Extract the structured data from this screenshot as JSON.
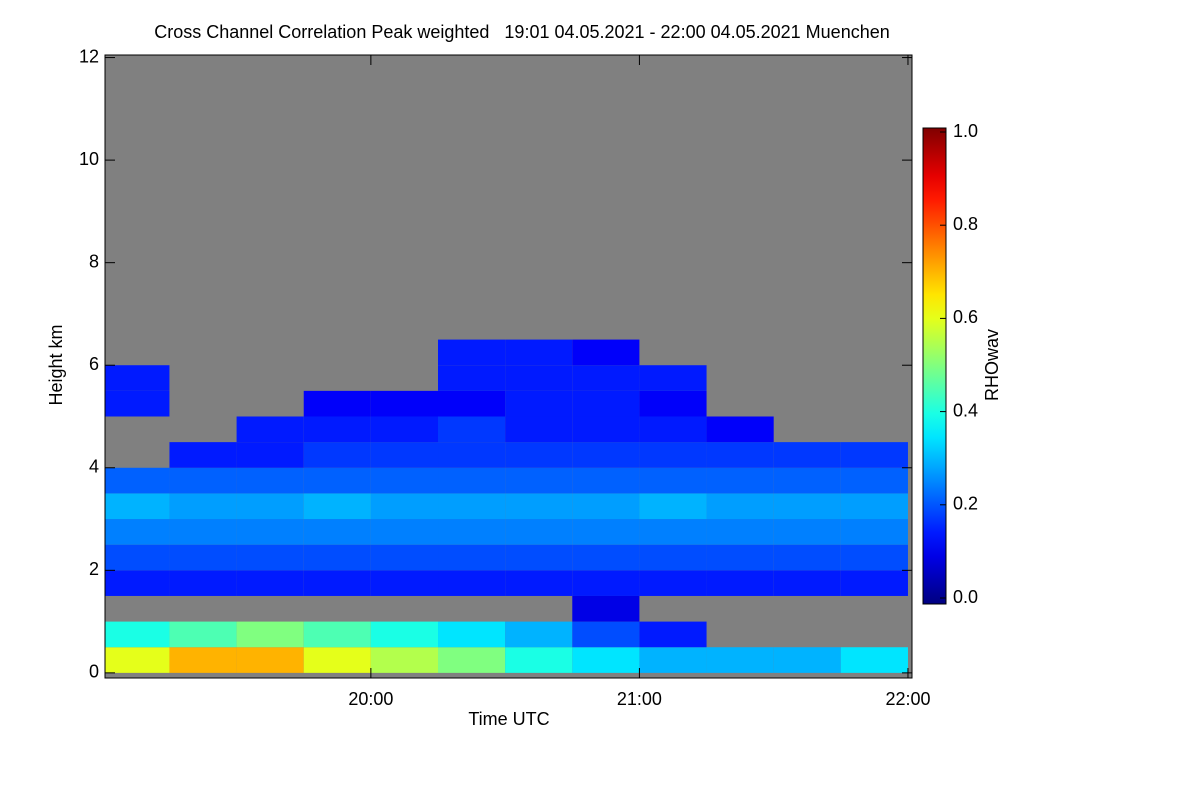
{
  "chart_data": {
    "type": "heatmap",
    "title": "Cross Channel Correlation Peak weighted   19:01 04.05.2021 - 22:00 04.05.2021 Muenchen",
    "xlabel": "Time UTC",
    "ylabel": "Height km",
    "colorbar_label": "RHOwav",
    "x_bins": [
      19.0,
      19.25,
      19.5,
      19.75,
      20.0,
      20.25,
      20.5,
      20.75,
      21.0,
      21.25,
      21.5,
      21.75,
      22.0
    ],
    "y_bins": [
      0,
      0.5,
      1.0,
      1.5,
      2.0,
      2.5,
      3.0,
      3.5,
      4.0,
      4.5,
      5.0,
      5.5,
      6.0,
      6.5,
      7.0
    ],
    "z": [
      [
        0.6,
        0.7,
        0.7,
        0.6,
        0.55,
        0.5,
        0.4,
        0.35,
        0.3,
        0.3,
        0.3,
        0.35
      ],
      [
        0.4,
        0.45,
        0.5,
        0.45,
        0.4,
        0.35,
        0.3,
        0.2,
        0.15,
        null,
        null,
        null
      ],
      [
        null,
        null,
        null,
        null,
        null,
        null,
        null,
        0.1,
        null,
        null,
        null,
        null
      ],
      [
        0.15,
        0.15,
        0.15,
        0.15,
        0.15,
        0.15,
        0.15,
        0.15,
        0.15,
        0.15,
        0.15,
        0.15
      ],
      [
        0.2,
        0.2,
        0.2,
        0.2,
        0.2,
        0.2,
        0.2,
        0.2,
        0.2,
        0.2,
        0.2,
        0.2
      ],
      [
        0.25,
        0.25,
        0.25,
        0.25,
        0.25,
        0.25,
        0.25,
        0.25,
        0.25,
        0.25,
        0.25,
        0.25
      ],
      [
        0.3,
        0.28,
        0.28,
        0.3,
        0.28,
        0.28,
        0.28,
        0.28,
        0.3,
        0.28,
        0.28,
        0.28
      ],
      [
        0.22,
        0.22,
        0.22,
        0.22,
        0.22,
        0.22,
        0.22,
        0.22,
        0.22,
        0.22,
        0.22,
        0.22
      ],
      [
        null,
        0.15,
        0.15,
        0.18,
        0.18,
        0.18,
        0.18,
        0.18,
        0.18,
        0.18,
        0.18,
        0.18
      ],
      [
        null,
        null,
        0.15,
        0.15,
        0.15,
        0.18,
        0.15,
        0.15,
        0.15,
        0.12,
        null,
        null
      ],
      [
        0.15,
        null,
        null,
        0.12,
        0.12,
        0.12,
        0.15,
        0.15,
        0.12,
        null,
        null,
        null
      ],
      [
        0.15,
        null,
        null,
        null,
        null,
        0.15,
        0.15,
        0.15,
        0.15,
        null,
        null,
        null
      ],
      [
        null,
        null,
        null,
        null,
        null,
        0.15,
        0.15,
        0.12,
        null,
        null,
        null,
        null
      ],
      [
        null,
        null,
        null,
        null,
        null,
        null,
        null,
        null,
        null,
        null,
        null,
        null
      ]
    ],
    "xlim": [
      19.01,
      22.015
    ],
    "xticks": [
      {
        "value": 20,
        "label": "20:00"
      },
      {
        "value": 21,
        "label": "21:00"
      },
      {
        "value": 22,
        "label": "22:00"
      }
    ],
    "ylim": [
      -0.1,
      12.05
    ],
    "yticks": [
      0,
      2,
      4,
      6,
      8,
      10,
      12
    ],
    "zlim": [
      0,
      1
    ],
    "zticks": [
      {
        "value": 0,
        "label": "0.0"
      },
      0.2,
      0.4,
      0.6,
      0.8,
      {
        "value": 1,
        "label": "1.0"
      }
    ],
    "colormap": "jet",
    "missing_color": "#808080"
  }
}
